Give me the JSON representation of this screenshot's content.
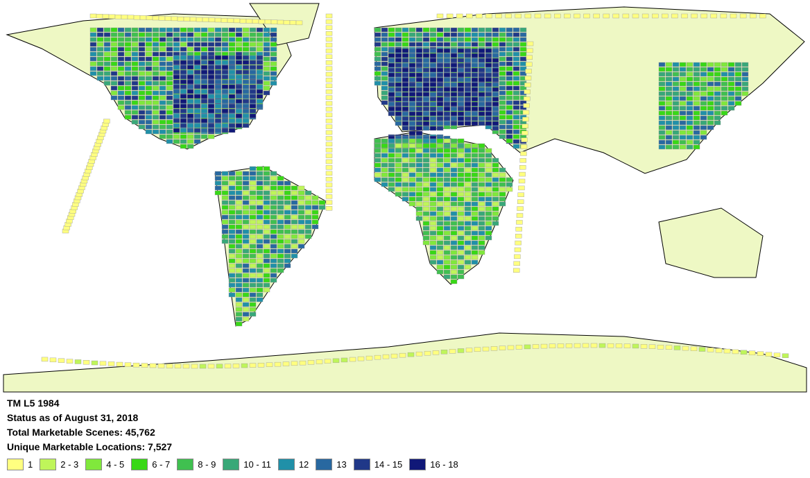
{
  "title": "TM L5 1984",
  "status": "Status as of August 31, 2018",
  "total_scenes": "Total Marketable Scenes:  45,762",
  "unique_locations": "Unique Marketable Locations:  7,527",
  "legend": [
    {
      "label": "1",
      "color": "#ffff80"
    },
    {
      "label": "2 - 3",
      "color": "#bff55a"
    },
    {
      "label": "4 - 5",
      "color": "#80e83c"
    },
    {
      "label": "6 - 7",
      "color": "#38d816"
    },
    {
      "label": "8 - 9",
      "color": "#40c050"
    },
    {
      "label": "10 - 11",
      "color": "#38a878"
    },
    {
      "label": "12",
      "color": "#2090a8"
    },
    {
      "label": "13",
      "color": "#2868a0"
    },
    {
      "label": "14 - 15",
      "color": "#203888"
    },
    {
      "label": "16 - 18",
      "color": "#101878"
    }
  ],
  "land_color": "#eef8c4"
}
